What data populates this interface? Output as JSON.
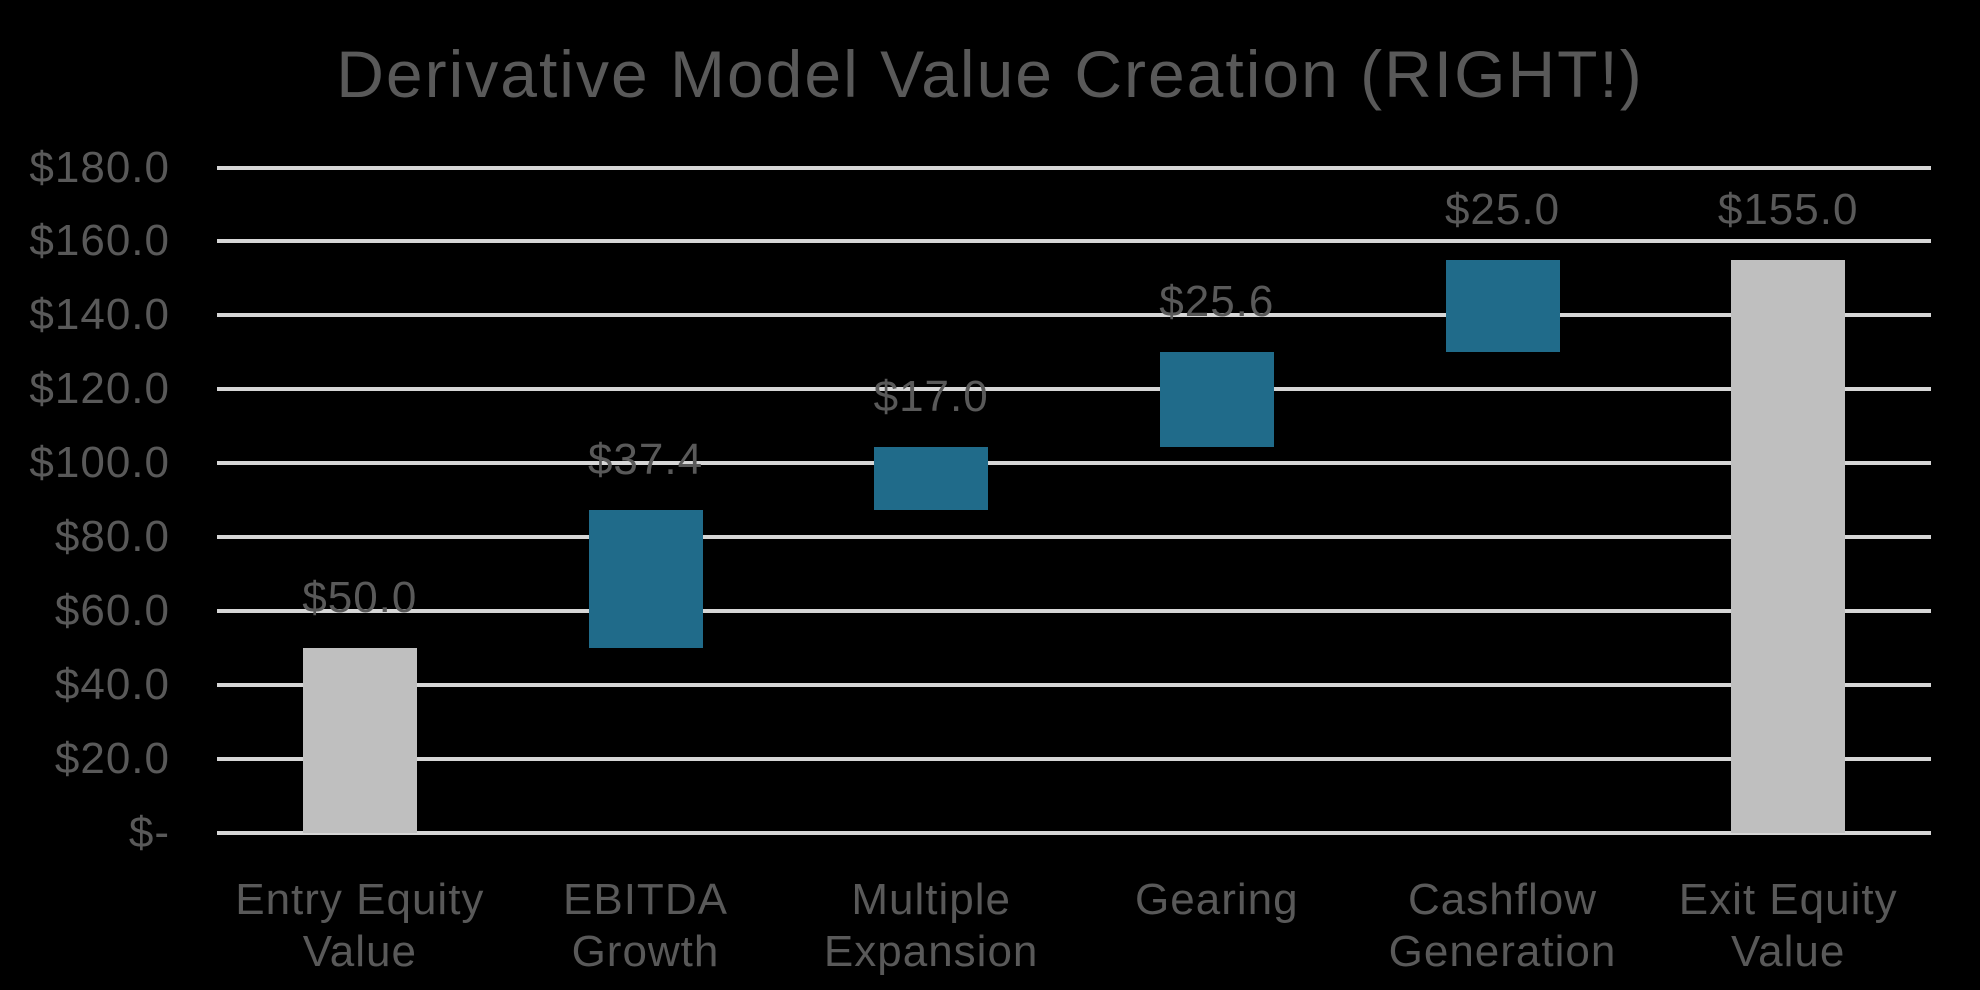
{
  "title": "Derivative Model Value Creation (RIGHT!)",
  "colors": {
    "background": "#000000",
    "text": "#595959",
    "gridline": "#D6D6D6",
    "total_bar": "#BFBFBF",
    "delta_bar": "#206B8A"
  },
  "chart_data": {
    "type": "bar",
    "subtype": "waterfall",
    "title": "Derivative Model Value Creation (RIGHT!)",
    "categories": [
      "Entry Equity Value",
      "EBITDA Growth",
      "Multiple Expansion",
      "Gearing",
      "Cashflow Generation",
      "Exit Equity Value"
    ],
    "category_label_lines": [
      "Entry Equity\nValue",
      "EBITDA\nGrowth",
      "Multiple\nExpansion",
      "Gearing",
      "Cashflow\nGeneration",
      "Exit Equity\nValue"
    ],
    "bars": [
      {
        "category": "Entry Equity Value",
        "label": "$50.0",
        "value": 50.0,
        "start": 0,
        "end": 50.0,
        "role": "total"
      },
      {
        "category": "EBITDA Growth",
        "label": "$37.4",
        "value": 37.4,
        "start": 50.0,
        "end": 87.4,
        "role": "delta"
      },
      {
        "category": "Multiple Expansion",
        "label": "$17.0",
        "value": 17.0,
        "start": 87.4,
        "end": 104.4,
        "role": "delta"
      },
      {
        "category": "Gearing",
        "label": "$25.6",
        "value": 25.6,
        "start": 104.4,
        "end": 130.0,
        "role": "delta"
      },
      {
        "category": "Cashflow Generation",
        "label": "$25.0",
        "value": 25.0,
        "start": 130.0,
        "end": 155.0,
        "role": "delta"
      },
      {
        "category": "Exit Equity Value",
        "label": "$155.0",
        "value": 155.0,
        "start": 0,
        "end": 155.0,
        "role": "total"
      }
    ],
    "y_axis": {
      "min": 0,
      "max": 180,
      "step": 20,
      "tick_labels": [
        "$-",
        "$20.0",
        "$40.0",
        "$60.0",
        "$80.0",
        "$100.0",
        "$120.0",
        "$140.0",
        "$160.0",
        "$180.0"
      ]
    },
    "xlabel": "",
    "ylabel": "",
    "grid": true,
    "legend": false
  }
}
